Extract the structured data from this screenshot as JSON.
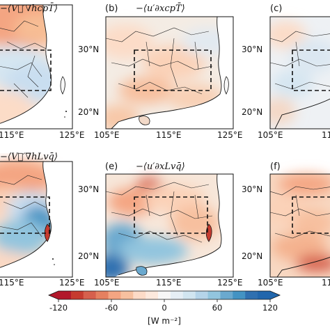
{
  "figure": {
    "panels": [
      {
        "id": "a",
        "label": "",
        "title": "−⟨V⃗′∇hcpT̄⟩",
        "pattern": "warm-north-cool-south",
        "xticks": [
          "115°E",
          "125°E"
        ],
        "yticks": []
      },
      {
        "id": "b",
        "label": "(b)",
        "title": "−⟨u′∂xcpT̄⟩",
        "pattern": "mild-mixed",
        "xticks": [
          "105°E",
          "115°E",
          "125°E"
        ],
        "yticks": [
          "30°N",
          "20°N"
        ]
      },
      {
        "id": "c",
        "label": "(c)",
        "title": "",
        "pattern": "mild-cool",
        "xticks": [
          "105°E",
          "11"
        ],
        "yticks": [
          "30°N",
          "20°N"
        ]
      },
      {
        "id": "d",
        "label": "",
        "title": "−⟨V⃗′∇hLvq̄⟩",
        "pattern": "warm-north-strong-blue-coast",
        "xticks": [
          "115°E",
          "125°E"
        ],
        "yticks": []
      },
      {
        "id": "e",
        "label": "(e)",
        "title": "−⟨u′∂xLvq̄⟩",
        "pattern": "blue-southwest",
        "xticks": [
          "105°E",
          "115°E",
          "125°E"
        ],
        "yticks": [
          "30°N",
          "20°N"
        ]
      },
      {
        "id": "f",
        "label": "(f)",
        "title": "",
        "pattern": "warm-orange",
        "xticks": [
          "105°E",
          "11"
        ],
        "yticks": [
          "30°N",
          "20°N"
        ]
      }
    ],
    "colorbar": {
      "ticks": [
        "-120",
        "-60",
        "0",
        "60",
        "120"
      ],
      "units": "[W m⁻²]",
      "min": -120,
      "max": 120,
      "colors": [
        "#b2182b",
        "#c63b2f",
        "#d6604d",
        "#e58060",
        "#f4a582",
        "#f7c09f",
        "#fddbc7",
        "#fde9dd",
        "#f7f7f7",
        "#e5eef5",
        "#d1e5f0",
        "#b5d4e9",
        "#92c5de",
        "#6aa9cf",
        "#4393c3",
        "#2f70b0",
        "#2166ac"
      ]
    }
  }
}
